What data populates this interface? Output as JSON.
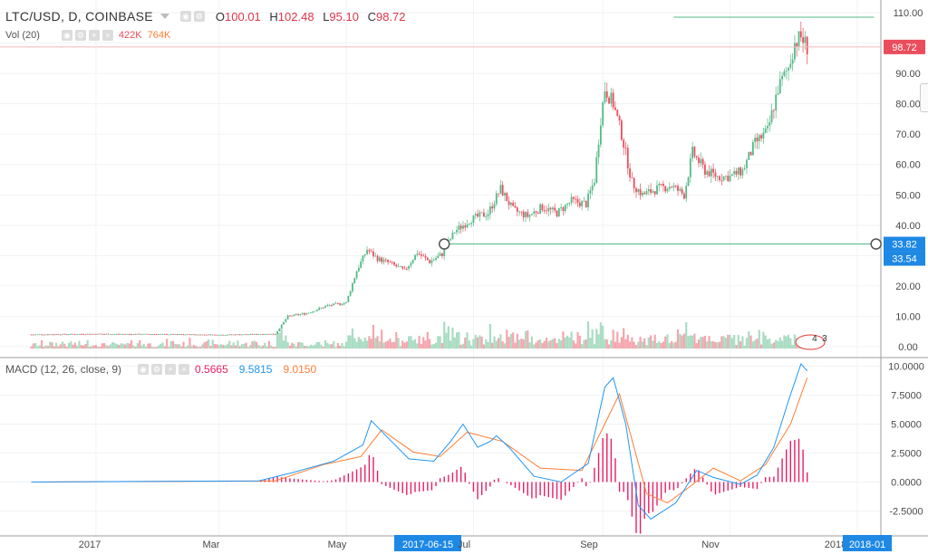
{
  "header": {
    "symbol": "LTC/USD, D, COINBASE",
    "open_label": "O",
    "open": "100.01",
    "high_label": "H",
    "high": "102.48",
    "low_label": "L",
    "low": "95.10",
    "close_label": "C",
    "close": "98.72",
    "vol_title": "Vol (20)",
    "vol_value": "422K",
    "vol_ma": "764K",
    "macd_title": "MACD (12, 26, close, 9)",
    "macd_hist": "0.5665",
    "macd_line": "9.5815",
    "macd_signal": "9.0150"
  },
  "colors": {
    "up": "#53b987",
    "down": "#eb4d5c",
    "vol_up": "#a9dcc3",
    "vol_down": "#f5a6ae",
    "macd_line": "#2196f3",
    "signal_line": "#ff7e36",
    "histogram": "#e91e63",
    "trend_line": "#53b987",
    "axis_highlight": "#1e88e5",
    "price_label": "#eb4d5c"
  },
  "chart_data": {
    "type": "candlestick",
    "ylim": [
      -3,
      113
    ],
    "price_ticks": [
      "110.00",
      "100.00",
      "90.00",
      "80.00",
      "70.00",
      "60.00",
      "50.00",
      "40.00",
      "30.00",
      "20.00",
      "10.00",
      "0.00"
    ],
    "macd_ticks": [
      "10.0000",
      "7.5000",
      "5.0000",
      "2.5000",
      "0.0000",
      "-2.5000"
    ],
    "x_axis_labels": [
      "2017",
      "Mar",
      "May",
      "2017-06-15",
      "Jul",
      "Sep",
      "Nov",
      "2018",
      "2018-01"
    ],
    "highlighted_x": [
      "2017-06-15",
      "2018-01"
    ],
    "last_price_label": "98.72",
    "line_tool_labels": [
      "33.82",
      "33.54"
    ],
    "events_badge": [
      "4",
      "3"
    ],
    "price_path": [
      [
        "2016-12-01",
        4
      ],
      [
        "2017-01-01",
        4.2
      ],
      [
        "2017-02-01",
        4.1
      ],
      [
        "2017-03-01",
        3.9
      ],
      [
        "2017-03-28",
        4.2
      ],
      [
        "2017-04-03",
        10
      ],
      [
        "2017-04-12",
        11
      ],
      [
        "2017-04-22",
        13.5
      ],
      [
        "2017-05-01",
        14.5
      ],
      [
        "2017-05-06",
        25
      ],
      [
        "2017-05-11",
        32
      ],
      [
        "2017-05-16",
        29
      ],
      [
        "2017-05-22",
        27.5
      ],
      [
        "2017-05-29",
        25
      ],
      [
        "2017-06-04",
        31
      ],
      [
        "2017-06-10",
        28
      ],
      [
        "2017-06-16",
        30.5
      ],
      [
        "2017-06-22",
        38
      ],
      [
        "2017-06-30",
        42
      ],
      [
        "2017-07-08",
        44
      ],
      [
        "2017-07-14",
        52
      ],
      [
        "2017-07-20",
        45
      ],
      [
        "2017-07-27",
        43
      ],
      [
        "2017-08-03",
        46
      ],
      [
        "2017-08-10",
        44
      ],
      [
        "2017-08-17",
        48
      ],
      [
        "2017-08-24",
        47
      ],
      [
        "2017-08-28",
        55
      ],
      [
        "2017-08-31",
        75
      ],
      [
        "2017-09-02",
        85
      ],
      [
        "2017-09-06",
        80
      ],
      [
        "2017-09-10",
        70
      ],
      [
        "2017-09-15",
        54
      ],
      [
        "2017-09-20",
        50
      ],
      [
        "2017-09-27",
        52
      ],
      [
        "2017-10-04",
        53
      ],
      [
        "2017-10-10",
        50
      ],
      [
        "2017-10-14",
        64
      ],
      [
        "2017-10-20",
        58
      ],
      [
        "2017-10-26",
        56
      ],
      [
        "2017-11-01",
        56
      ],
      [
        "2017-11-07",
        58
      ],
      [
        "2017-11-13",
        67
      ],
      [
        "2017-11-19",
        71
      ],
      [
        "2017-11-24",
        85
      ],
      [
        "2017-11-29",
        92
      ],
      [
        "2017-12-02",
        100
      ],
      [
        "2017-12-05",
        102
      ],
      [
        "2017-12-08",
        98.72
      ]
    ],
    "trend_lines": [
      {
        "from": [
          "2017-06-17",
          33.82
        ],
        "to": [
          "2018-01-10",
          33.82
        ]
      },
      {
        "from": [
          "2017-10-05",
          108.5
        ],
        "to": [
          "2018-01-09",
          108.5
        ]
      }
    ],
    "macd_path": [
      [
        "2016-12-01",
        0
      ],
      [
        "2017-03-20",
        0.1
      ],
      [
        "2017-04-05",
        0.8
      ],
      [
        "2017-04-25",
        1.8
      ],
      [
        "2017-05-09",
        3.2
      ],
      [
        "2017-05-13",
        5.3
      ],
      [
        "2017-05-20",
        4
      ],
      [
        "2017-05-31",
        2
      ],
      [
        "2017-06-12",
        1.8
      ],
      [
        "2017-06-20",
        3.5
      ],
      [
        "2017-06-26",
        5
      ],
      [
        "2017-07-03",
        3
      ],
      [
        "2017-07-09",
        3.5
      ],
      [
        "2017-07-12",
        4
      ],
      [
        "2017-07-18",
        3
      ],
      [
        "2017-07-30",
        0.5
      ],
      [
        "2017-08-12",
        0
      ],
      [
        "2017-08-25",
        1.6
      ],
      [
        "2017-09-02",
        8.2
      ],
      [
        "2017-09-06",
        9
      ],
      [
        "2017-09-12",
        5
      ],
      [
        "2017-09-18",
        -2
      ],
      [
        "2017-09-24",
        -3.2
      ],
      [
        "2017-10-06",
        -1.8
      ],
      [
        "2017-10-16",
        1
      ],
      [
        "2017-10-24",
        0.4
      ],
      [
        "2017-11-06",
        -0.2
      ],
      [
        "2017-11-14",
        0.6
      ],
      [
        "2017-11-22",
        3
      ],
      [
        "2017-11-29",
        7
      ],
      [
        "2017-12-05",
        10.2
      ],
      [
        "2017-12-08",
        9.6
      ]
    ],
    "signal_path": [
      [
        "2016-12-01",
        0
      ],
      [
        "2017-03-28",
        0.1
      ],
      [
        "2017-04-20",
        1.5
      ],
      [
        "2017-05-08",
        2.2
      ],
      [
        "2017-05-18",
        4.5
      ],
      [
        "2017-06-02",
        2.6
      ],
      [
        "2017-06-15",
        2.2
      ],
      [
        "2017-06-28",
        4.3
      ],
      [
        "2017-07-15",
        3.5
      ],
      [
        "2017-08-02",
        1.2
      ],
      [
        "2017-08-22",
        1
      ],
      [
        "2017-09-09",
        7.6
      ],
      [
        "2017-09-22",
        -1
      ],
      [
        "2017-10-02",
        -1.8
      ],
      [
        "2017-10-12",
        -0.5
      ],
      [
        "2017-10-24",
        1.2
      ],
      [
        "2017-11-06",
        0.1
      ],
      [
        "2017-11-18",
        1.5
      ],
      [
        "2017-11-30",
        5
      ],
      [
        "2017-12-08",
        9
      ]
    ]
  }
}
